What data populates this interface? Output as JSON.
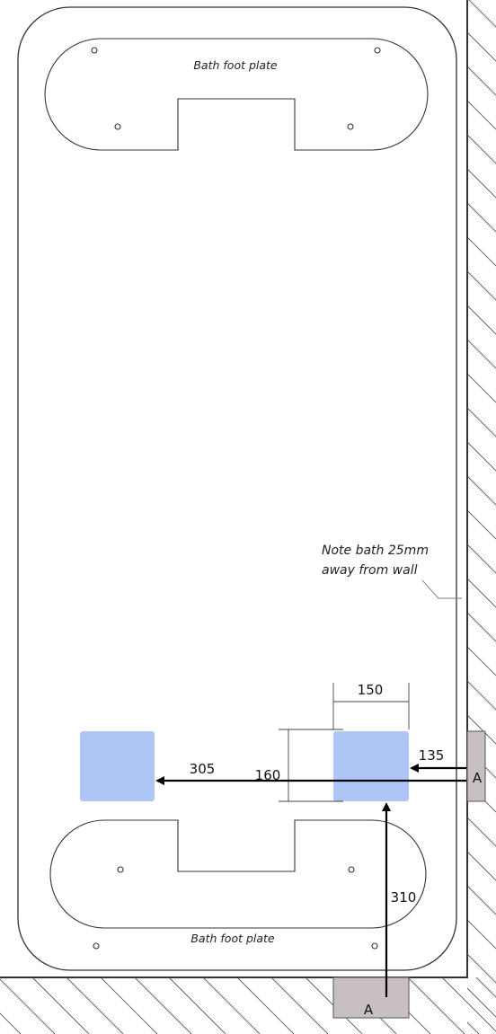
{
  "labels": {
    "top_plate": "Bath foot plate",
    "bottom_plate": "Bath foot plate",
    "note_line1": "Note bath 25mm",
    "note_line2": "away from wall"
  },
  "dimensions": {
    "pad_width": "150",
    "pad_height": "160",
    "offset_135": "135",
    "offset_305": "305",
    "offset_310": "310"
  },
  "markers": {
    "side": "A",
    "bottom": "A"
  },
  "colors": {
    "pad_fill": "#aec6f5",
    "marker_fill": "#c8c0c0",
    "line": "#333333"
  }
}
